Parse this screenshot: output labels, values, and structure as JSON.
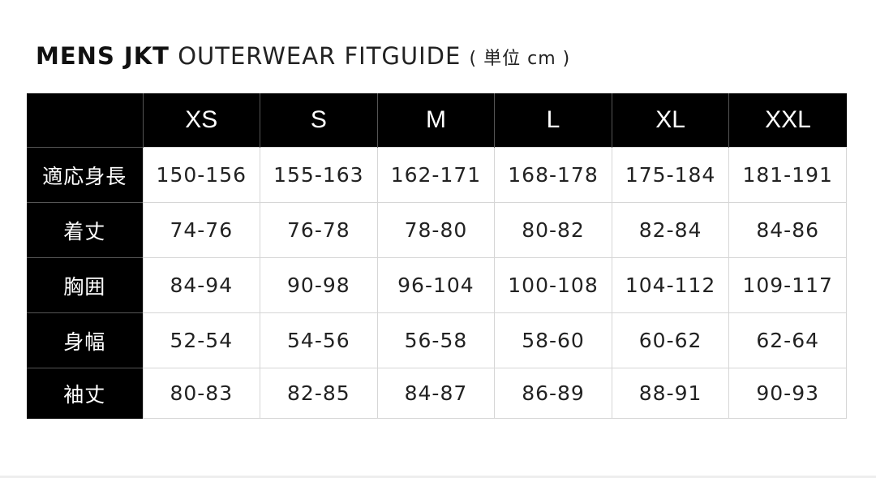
{
  "title": {
    "bold": "MENS JKT",
    "light": "OUTERWEAR FITGUIDE",
    "unit": "( 単位 cm )"
  },
  "table": {
    "corner": "",
    "columns": [
      "XS",
      "S",
      "M",
      "L",
      "XL",
      "XXL"
    ],
    "rows": [
      {
        "label": "適応身長",
        "values": [
          "150-156",
          "155-163",
          "162-171",
          "168-178",
          "175-184",
          "181-191"
        ]
      },
      {
        "label": "着丈",
        "values": [
          "74-76",
          "76-78",
          "78-80",
          "80-82",
          "82-84",
          "84-86"
        ]
      },
      {
        "label": "胸囲",
        "values": [
          "84-94",
          "90-98",
          "96-104",
          "100-108",
          "104-112",
          "109-117"
        ]
      },
      {
        "label": "身幅",
        "values": [
          "52-54",
          "54-56",
          "56-58",
          "58-60",
          "60-62",
          "62-64"
        ]
      },
      {
        "label": "袖丈",
        "values": [
          "80-83",
          "82-85",
          "84-87",
          "86-89",
          "88-91",
          "90-93"
        ]
      }
    ]
  }
}
